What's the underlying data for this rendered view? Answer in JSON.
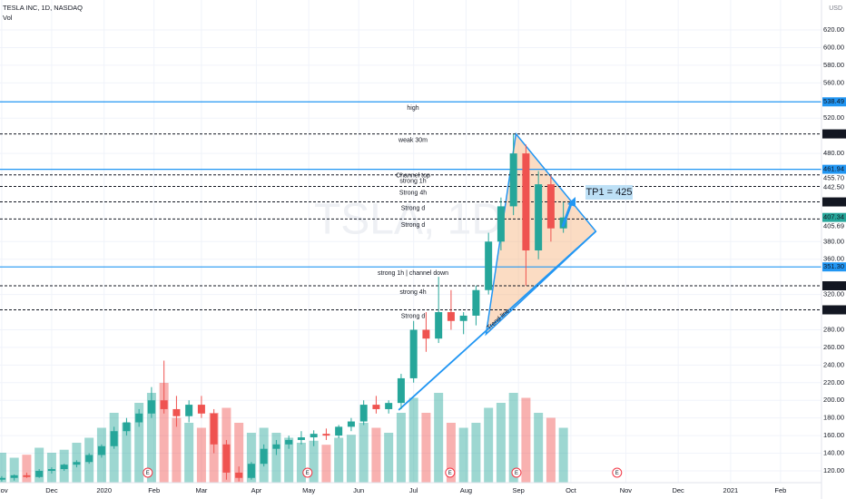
{
  "chart_data": {
    "type": "candlestick",
    "title": "TESLA INC, 1D, NASDAQ",
    "indicator": "Vol",
    "currency": "USD",
    "watermark": "TSLA, 1D",
    "x": [
      0,
      5,
      10,
      15,
      20,
      25,
      30,
      35,
      40,
      45,
      50,
      55,
      60,
      65,
      70,
      75,
      80,
      85,
      90,
      95,
      100,
      105,
      110,
      115,
      120,
      125,
      130,
      135,
      140,
      145,
      150,
      155,
      160,
      165,
      170,
      175,
      180,
      185,
      190,
      195,
      200,
      205,
      210,
      215,
      220,
      225
    ],
    "open": [
      110,
      112,
      115,
      113,
      120,
      122,
      127,
      130,
      138,
      148,
      165,
      175,
      185,
      200,
      190,
      182,
      195,
      185,
      150,
      118,
      112,
      128,
      145,
      150,
      155,
      158,
      162,
      160,
      170,
      176,
      195,
      190,
      197,
      225,
      280,
      270,
      300,
      290,
      296,
      325,
      380,
      420,
      480,
      370,
      445,
      395
    ],
    "high": [
      114,
      116,
      118,
      122,
      124,
      128,
      132,
      140,
      150,
      170,
      180,
      190,
      215,
      245,
      205,
      200,
      205,
      190,
      155,
      125,
      130,
      150,
      155,
      160,
      165,
      166,
      168,
      172,
      180,
      200,
      205,
      200,
      230,
      290,
      300,
      340,
      325,
      300,
      330,
      390,
      430,
      502,
      490,
      460,
      455,
      425
    ],
    "low": [
      108,
      109,
      112,
      112,
      117,
      120,
      124,
      128,
      135,
      145,
      160,
      170,
      180,
      185,
      170,
      175,
      180,
      140,
      110,
      108,
      110,
      125,
      138,
      145,
      150,
      148,
      155,
      157,
      165,
      172,
      185,
      185,
      190,
      220,
      255,
      265,
      280,
      275,
      285,
      320,
      370,
      410,
      330,
      360,
      380,
      390
    ],
    "close": [
      112,
      115,
      113,
      120,
      122,
      127,
      130,
      138,
      148,
      165,
      175,
      185,
      200,
      190,
      182,
      195,
      185,
      150,
      118,
      112,
      128,
      145,
      150,
      155,
      158,
      162,
      160,
      170,
      176,
      195,
      190,
      197,
      225,
      280,
      270,
      300,
      290,
      296,
      325,
      380,
      420,
      480,
      370,
      445,
      395,
      407.34
    ],
    "volume": [
      30,
      25,
      28,
      35,
      30,
      33,
      40,
      45,
      55,
      70,
      60,
      80,
      90,
      100,
      65,
      60,
      55,
      70,
      75,
      60,
      50,
      55,
      50,
      45,
      40,
      42,
      38,
      45,
      48,
      60,
      55,
      50,
      70,
      85,
      70,
      90,
      60,
      55,
      60,
      75,
      80,
      90,
      85,
      70,
      65,
      55
    ],
    "vlim": [
      0,
      100
    ],
    "up_color": "#26a69a",
    "down_color": "#ef5350",
    "xlim": [
      -0.7,
      328.4
    ],
    "xticks": [
      {
        "value": 0,
        "label": "Nov"
      },
      {
        "value": 20,
        "label": "Dec"
      },
      {
        "value": 41,
        "label": "2020"
      },
      {
        "value": 61,
        "label": "Feb"
      },
      {
        "value": 80,
        "label": "Mar"
      },
      {
        "value": 102,
        "label": "Apr"
      },
      {
        "value": 123,
        "label": "May"
      },
      {
        "value": 143,
        "label": "Jun"
      },
      {
        "value": 165,
        "label": "Jul"
      },
      {
        "value": 186,
        "label": "Aug"
      },
      {
        "value": 207,
        "label": "Sep"
      },
      {
        "value": 228,
        "label": "Oct"
      },
      {
        "value": 250,
        "label": "Nov"
      },
      {
        "value": 271,
        "label": "Dec"
      },
      {
        "value": 292,
        "label": "2021"
      },
      {
        "value": 312,
        "label": "Feb"
      }
    ],
    "ylim": [
      106.6,
      654
    ],
    "yticks": [
      {
        "value": 620,
        "label": "620.00"
      },
      {
        "value": 600,
        "label": "600.00"
      },
      {
        "value": 580,
        "label": "580.00"
      },
      {
        "value": 560,
        "label": "560.00"
      },
      {
        "value": 520,
        "label": "520.00"
      },
      {
        "value": 480,
        "label": "480.00"
      },
      {
        "value": 380,
        "label": "380.00"
      },
      {
        "value": 360,
        "label": "360.00"
      },
      {
        "value": 320,
        "label": "320.00"
      },
      {
        "value": 280,
        "label": "280.00"
      },
      {
        "value": 260,
        "label": "260.00"
      },
      {
        "value": 240,
        "label": "240.00"
      },
      {
        "value": 220,
        "label": "220.00"
      },
      {
        "value": 200,
        "label": "200.00"
      },
      {
        "value": 180,
        "label": "180.00"
      },
      {
        "value": 160,
        "label": "160.00"
      },
      {
        "value": 140,
        "label": "140.00"
      },
      {
        "value": 120,
        "label": "120.00"
      }
    ],
    "grid": true,
    "levels": [
      {
        "text": "high",
        "price": 538.49,
        "color": "#2196f3",
        "style": "solid",
        "box": "#2196f3"
      },
      {
        "text": "weak 30m",
        "price": 502.14,
        "color": "#f23645",
        "style": "dashed",
        "box": "#131722"
      },
      {
        "text": "Channel top",
        "price": 461.94,
        "color": "#2196f3",
        "style": "solid",
        "box": "#2196f3"
      },
      {
        "text": "strong 1h",
        "price": {
          "value": 455.7,
          "label": "455.70"
        },
        "color": "#f23645",
        "style": "dashed",
        "box": "#ffffff"
      },
      {
        "text": "Strong 4h",
        "price": {
          "value": 442.5,
          "label": "442.50"
        },
        "color": "#f23645",
        "style": "dashed",
        "box": "#ffffff"
      },
      {
        "text": "Strong d",
        "price": {
          "value": 425,
          "label": "425.00"
        },
        "color": "#f23645",
        "style": "dashed",
        "box": "#131722"
      },
      {
        "text": "Strong d",
        "price": 405.69,
        "color": "#f23645",
        "style": "dashed",
        "box": "#ffffff"
      },
      {
        "text": "strong 1h | channel down",
        "price": {
          "value": 351.3,
          "label": "351.30"
        },
        "color": "#2196f3",
        "style": "solid",
        "box": "#2196f3"
      },
      {
        "text": "strong 4h",
        "price": 329.88,
        "color": "#f23645",
        "style": "dashed",
        "box": "#131722"
      },
      {
        "text": "Strong d",
        "price": 302.61,
        "color": "#f23645",
        "style": "dashed",
        "box": "#131722"
      }
    ],
    "last_color": "#26a69a",
    "triangle": {
      "points": [
        [
          206,
          502.14
        ],
        [
          238,
          391.6
        ],
        [
          194,
          275
        ]
      ],
      "color": "#2196f3",
      "fill": "#f7b27a"
    },
    "trend_line": {
      "points": [
        [
          159,
          189
        ],
        [
          238,
          391.6
        ]
      ],
      "text": "Trend line",
      "color": "#2196f3"
    },
    "target": {
      "text": "TP1 = 425",
      "from": [
        224.7,
        396.8
      ],
      "to": [
        228.4,
        425.6
      ],
      "color": "#2196f3"
    },
    "earnings": {
      "label": "E",
      "x": [
        58.5,
        122.5,
        179.6,
        206.2,
        246.5
      ],
      "color": "#f23645"
    }
  }
}
